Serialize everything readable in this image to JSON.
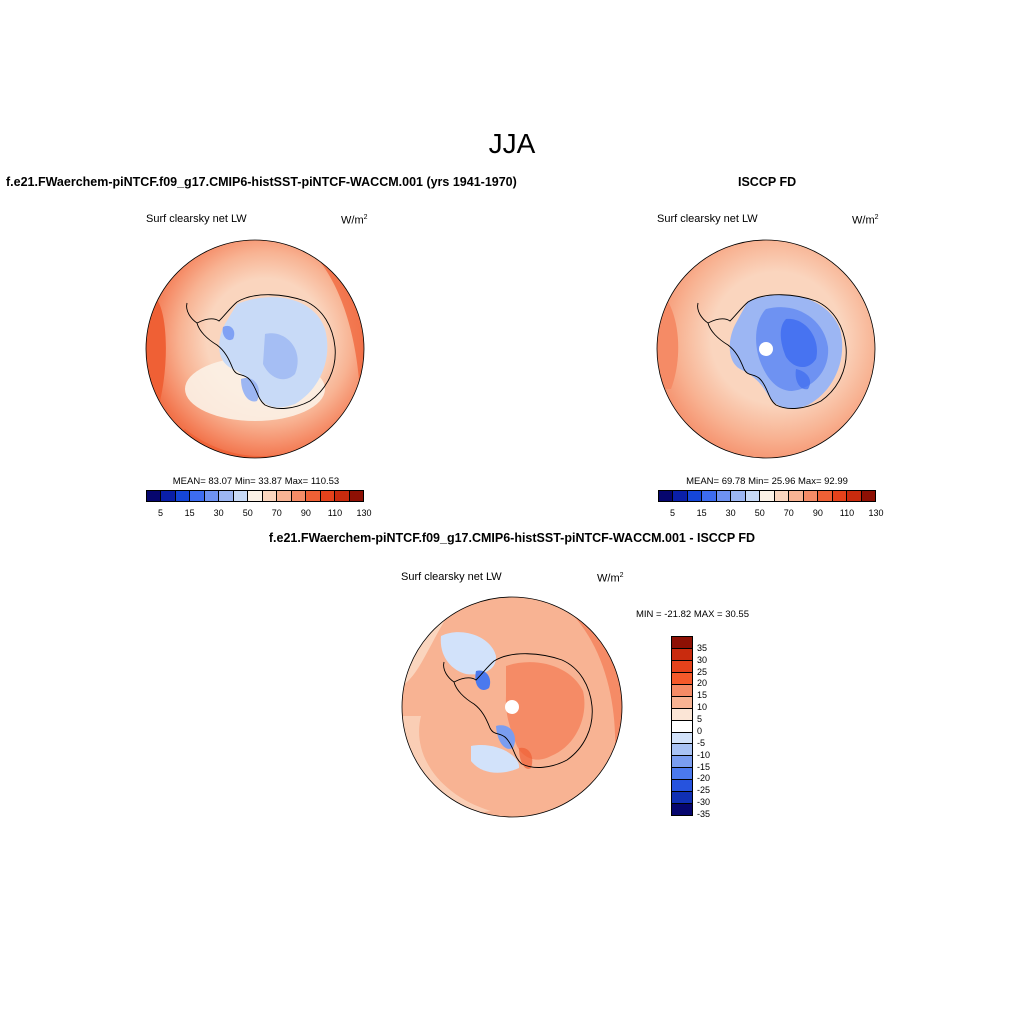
{
  "main_title": "JJA",
  "panels": {
    "model": {
      "title": "f.e21.FWaerchem-piNTCF.f09_g17.CMIP6-histSST-piNTCF-WACCM.001 (yrs 1941-1970)",
      "variable": "Surf clearsky net LW",
      "units": "W/m",
      "units_sup": "2",
      "stats": "MEAN=  83.07  Min=  33.87  Max= 110.53"
    },
    "obs": {
      "title": "ISCCP FD",
      "variable": "Surf clearsky net LW",
      "units": "W/m",
      "units_sup": "2",
      "stats": "MEAN=  69.78  Min=  25.96  Max=  92.99"
    },
    "diff": {
      "title": "f.e21.FWaerchem-piNTCF.f09_g17.CMIP6-histSST-piNTCF-WACCM.001 - ISCCP FD",
      "variable": "Surf clearsky net LW",
      "units": "W/m",
      "units_sup": "2",
      "stats": "MIN = -21.82 MAX =  30.55"
    }
  },
  "colorbar_abs": {
    "colors": [
      "#06066e",
      "#0a1fa8",
      "#1546d8",
      "#3d6cf0",
      "#6e92f2",
      "#9cb6f3",
      "#c8daf7",
      "#fbf1e6",
      "#fad5be",
      "#f8b393",
      "#f58b66",
      "#ef6035",
      "#e5421b",
      "#c92b0e",
      "#8e1004"
    ],
    "labels": [
      "5",
      "15",
      "30",
      "50",
      "70",
      "90",
      "110",
      "130"
    ]
  },
  "colorbar_diff": {
    "colors": [
      "#8e1004",
      "#c92b0e",
      "#e5421b",
      "#f5592a",
      "#f58b66",
      "#f8b393",
      "#fbe5d6",
      "#ffffff",
      "#d2e2fa",
      "#a8c2f4",
      "#7a9df0",
      "#4b79ee",
      "#2653de",
      "#1030b4",
      "#06066e"
    ],
    "labels": [
      "35",
      "30",
      "25",
      "20",
      "15",
      "10",
      "5",
      "0",
      "-5",
      "-10",
      "-15",
      "-20",
      "-25",
      "-30",
      "-35"
    ]
  }
}
